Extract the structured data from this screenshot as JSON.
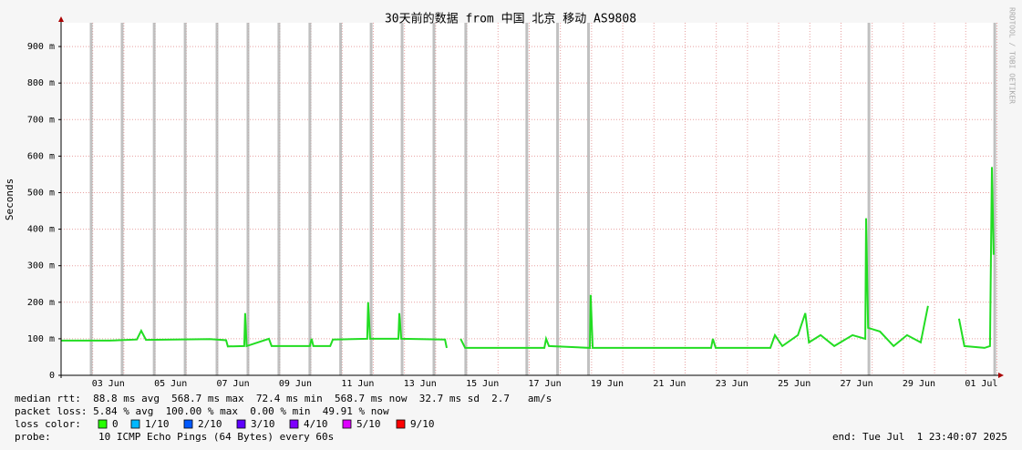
{
  "chart_data": {
    "type": "line",
    "title": "30天前的数据 from 中国 北京 移动 AS9808",
    "y_label": "Seconds",
    "watermark": "RRDTOOL / TOBI OETIKER",
    "xlim": [
      "2025-06-01T23:40",
      "2025-07-01T23:40"
    ],
    "xticks": [
      {
        "value": "2025-06-03T12:00",
        "label": "03 Jun"
      },
      {
        "value": "2025-06-05T12:00",
        "label": "05 Jun"
      },
      {
        "value": "2025-06-07T12:00",
        "label": "07 Jun"
      },
      {
        "value": "2025-06-09T12:00",
        "label": "09 Jun"
      },
      {
        "value": "2025-06-11T12:00",
        "label": "11 Jun"
      },
      {
        "value": "2025-06-13T12:00",
        "label": "13 Jun"
      },
      {
        "value": "2025-06-15T12:00",
        "label": "15 Jun"
      },
      {
        "value": "2025-06-17T12:00",
        "label": "17 Jun"
      },
      {
        "value": "2025-06-19T12:00",
        "label": "19 Jun"
      },
      {
        "value": "2025-06-21T12:00",
        "label": "21 Jun"
      },
      {
        "value": "2025-06-23T12:00",
        "label": "23 Jun"
      },
      {
        "value": "2025-06-25T12:00",
        "label": "25 Jun"
      },
      {
        "value": "2025-06-27T12:00",
        "label": "27 Jun"
      },
      {
        "value": "2025-06-29T12:00",
        "label": "29 Jun"
      },
      {
        "value": "2025-07-01T12:00",
        "label": "01 Jul"
      }
    ],
    "ylim": [
      0,
      0.965
    ],
    "yticks": [
      0,
      {
        "value": 0.1,
        "label": "100 m"
      },
      {
        "value": 0.2,
        "label": "200 m"
      },
      {
        "value": 0.3,
        "label": "300 m"
      },
      {
        "value": 0.4,
        "label": "400 m"
      },
      {
        "value": 0.5,
        "label": "500 m"
      },
      {
        "value": 0.6,
        "label": "600 m"
      },
      {
        "value": 0.7,
        "label": "700 m"
      },
      {
        "value": 0.8,
        "label": "800 m"
      },
      {
        "value": 0.9,
        "label": "900 m"
      }
    ],
    "grid": true,
    "outages": [
      "2025-06-02T22:50",
      "2025-06-03T22:40",
      "2025-06-04T23:20",
      "2025-06-05T23:10",
      "2025-06-06T23:40",
      "2025-06-07T23:30",
      "2025-06-08T23:20",
      "2025-06-09T23:10",
      "2025-06-10T22:50",
      "2025-06-11T22:20",
      "2025-06-12T22:10",
      "2025-06-13T22:40",
      "2025-06-14T23:10",
      "2025-06-16T22:10",
      "2025-06-17T21:50",
      "2025-06-18T21:40",
      "2025-06-27T21:30",
      "2025-07-01T22:20"
    ],
    "outage_color": "#b0b0b0",
    "x": [
      "2025-06-01T23:40",
      "2025-06-03T13:00",
      "2025-06-04T10:00",
      "2025-06-04T13:20",
      "2025-06-04T17:00",
      "2025-06-06T18:10",
      "2025-06-07T06:40",
      "2025-06-07T08:00",
      "2025-06-07T20:40",
      "2025-06-07T21:20",
      "2025-06-07T22:30",
      "2025-06-08T15:40",
      "2025-06-08T17:40",
      "2025-06-09T23:10",
      "2025-06-10T00:30",
      "2025-06-10T01:50",
      "2025-06-10T14:50",
      "2025-06-10T16:50",
      "2025-06-11T19:20",
      "2025-06-11T20:00",
      "2025-06-11T21:30",
      "2025-06-12T19:20",
      "2025-06-12T20:00",
      "2025-06-12T21:30",
      "2025-06-14T07:10",
      "2025-06-14T08:30",
      "2025-06-14T14:00",
      "2025-06-14T19:10",
      "2025-06-14T22:40",
      "2025-06-17T11:40",
      "2025-06-17T13:00",
      "2025-06-17T15:10",
      "2025-06-18T22:40",
      "2025-06-18T23:20",
      "2025-06-19T00:50",
      "2025-06-22T20:00",
      "2025-06-22T21:20",
      "2025-06-22T23:30",
      "2025-06-24T17:40",
      "2025-06-24T21:10",
      "2025-06-25T02:50",
      "2025-06-25T14:50",
      "2025-06-25T20:30",
      "2025-06-25T23:20",
      "2025-06-26T08:20",
      "2025-06-26T18:50",
      "2025-06-27T08:50",
      "2025-06-27T18:40",
      "2025-06-27T19:20",
      "2025-06-27T20:50",
      "2025-06-28T06:00",
      "2025-06-28T16:30",
      "2025-06-29T02:50",
      "2025-06-29T13:20",
      "2025-06-29T19:00",
      "2025-06-30T06:00",
      "2025-06-30T18:50",
      "2025-06-30T23:00",
      "2025-07-01T14:30",
      "2025-07-01T18:40",
      "2025-07-01T20:10",
      "2025-07-01T21:30"
    ],
    "series": [
      {
        "name": "median rtt",
        "color": "#22dd22",
        "values": [
          0.095,
          0.095,
          0.098,
          0.122,
          0.097,
          0.099,
          0.096,
          0.079,
          0.08,
          0.17,
          0.08,
          0.1,
          0.08,
          0.08,
          0.1,
          0.08,
          0.08,
          0.098,
          0.1,
          0.2,
          0.1,
          0.1,
          0.17,
          0.1,
          0.098,
          0.075,
          null,
          0.1,
          0.075,
          0.075,
          0.1,
          0.08,
          0.075,
          0.22,
          0.075,
          0.075,
          0.1,
          0.075,
          0.075,
          0.11,
          0.08,
          0.11,
          0.17,
          0.09,
          0.11,
          0.08,
          0.11,
          0.1,
          0.43,
          0.13,
          0.12,
          0.08,
          0.11,
          0.09,
          0.19,
          null,
          0.155,
          0.08,
          0.075,
          0.08,
          0.57,
          0.33
        ]
      }
    ],
    "stats": [
      "median rtt:  88.8 ms avg  568.7 ms max  72.4 ms min  568.7 ms now  32.7 ms sd  2.7   am/s",
      "packet loss: 5.84 % avg  100.00 % max  0.00 % min  49.91 % now"
    ],
    "loss_label": "loss color:",
    "loss_colors": [
      {
        "label": "0",
        "color": "#26ff00"
      },
      {
        "label": "1/10",
        "color": "#00b8ff"
      },
      {
        "label": "2/10",
        "color": "#0059ff"
      },
      {
        "label": "3/10",
        "color": "#5e00ff"
      },
      {
        "label": "4/10",
        "color": "#7e00ff"
      },
      {
        "label": "5/10",
        "color": "#dd00ff"
      },
      {
        "label": "9/10",
        "color": "#ff0000"
      }
    ],
    "probe_label": "probe:",
    "probe": "10 ICMP Echo Pings (64 Bytes) every 60s",
    "end": "end: Tue Jul  1 23:40:07 2025"
  }
}
